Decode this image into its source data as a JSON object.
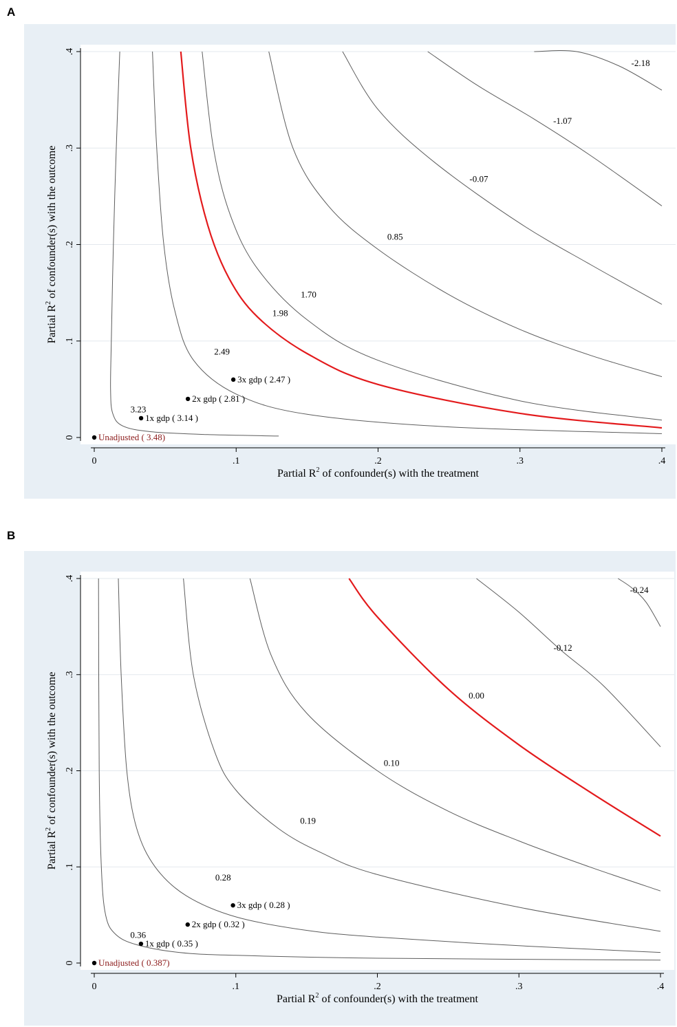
{
  "panels": [
    {
      "label": "A"
    },
    {
      "label": "B"
    }
  ],
  "chart_data": [
    {
      "type": "line",
      "subtype": "contour",
      "panel": "A",
      "xlabel": "Partial R",
      "ylabel": "Partial R",
      "xlabel_rest": " of confounder(s) with the treatment",
      "ylabel_rest": " of confounder(s) with the outcome",
      "superscript": "2",
      "xlim": [
        0,
        0.4
      ],
      "ylim": [
        0,
        0.4
      ],
      "xticks": [
        0,
        0.1,
        0.2,
        0.3,
        0.4
      ],
      "yticks": [
        0,
        0.1,
        0.2,
        0.3,
        0.4
      ],
      "xtick_labels": [
        "0",
        ".1",
        ".2",
        ".3",
        ".4"
      ],
      "ytick_labels": [
        "0",
        ".1",
        ".2",
        ".3",
        ".4"
      ],
      "grid": true,
      "colors": {
        "contour": "#5c5c5c",
        "threshold": "#e31a1c",
        "unadjusted": "#8b1a1a",
        "background": "#e8eff5",
        "grid": "#ffffff"
      },
      "contours": [
        {
          "label": "3.23",
          "points": [
            [
              0.018,
              0.4
            ],
            [
              0.0155,
              0.3
            ],
            [
              0.0135,
              0.2
            ],
            [
              0.012,
              0.1
            ],
            [
              0.0115,
              0.05
            ],
            [
              0.013,
              0.025
            ],
            [
              0.02,
              0.012
            ],
            [
              0.04,
              0.006
            ],
            [
              0.08,
              0.003
            ],
            [
              0.13,
              0.0015
            ]
          ],
          "label_at": [
            0.031,
            0.026
          ]
        },
        {
          "label": "2.49",
          "points": [
            [
              0.041,
              0.4
            ],
            [
              0.044,
              0.3
            ],
            [
              0.049,
              0.2
            ],
            [
              0.057,
              0.13
            ],
            [
              0.07,
              0.08
            ],
            [
              0.1,
              0.045
            ],
            [
              0.15,
              0.024
            ],
            [
              0.25,
              0.011
            ],
            [
              0.4,
              0.004
            ]
          ],
          "label_at": [
            0.09,
            0.086
          ]
        },
        {
          "label": "1.98",
          "threshold": true,
          "points": [
            [
              0.061,
              0.4
            ],
            [
              0.068,
              0.3
            ],
            [
              0.08,
              0.22
            ],
            [
              0.095,
              0.165
            ],
            [
              0.115,
              0.125
            ],
            [
              0.15,
              0.087
            ],
            [
              0.2,
              0.055
            ],
            [
              0.3,
              0.025
            ],
            [
              0.4,
              0.01
            ]
          ],
          "label_at": [
            0.131,
            0.126
          ]
        },
        {
          "label": "1.70",
          "points": [
            [
              0.076,
              0.4
            ],
            [
              0.084,
              0.3
            ],
            [
              0.096,
              0.23
            ],
            [
              0.115,
              0.175
            ],
            [
              0.15,
              0.122
            ],
            [
              0.2,
              0.08
            ],
            [
              0.3,
              0.038
            ],
            [
              0.4,
              0.018
            ]
          ],
          "label_at": [
            0.151,
            0.145
          ]
        },
        {
          "label": "0.85",
          "points": [
            [
              0.123,
              0.4
            ],
            [
              0.14,
              0.3
            ],
            [
              0.165,
              0.24
            ],
            [
              0.2,
              0.195
            ],
            [
              0.25,
              0.148
            ],
            [
              0.3,
              0.112
            ],
            [
              0.35,
              0.085
            ],
            [
              0.4,
              0.063
            ]
          ],
          "label_at": [
            0.212,
            0.205
          ]
        },
        {
          "label": "-0.07",
          "points": [
            [
              0.175,
              0.4
            ],
            [
              0.2,
              0.34
            ],
            [
              0.24,
              0.285
            ],
            [
              0.3,
              0.222
            ],
            [
              0.35,
              0.179
            ],
            [
              0.4,
              0.138
            ]
          ],
          "label_at": [
            0.271,
            0.265
          ]
        },
        {
          "label": "-1.07",
          "points": [
            [
              0.235,
              0.4
            ],
            [
              0.27,
              0.365
            ],
            [
              0.31,
              0.33
            ],
            [
              0.35,
              0.292
            ],
            [
              0.4,
              0.24
            ]
          ],
          "label_at": [
            0.33,
            0.325
          ]
        },
        {
          "label": "-2.18",
          "points": [
            [
              0.31,
              0.4
            ],
            [
              0.34,
              0.4
            ],
            [
              0.37,
              0.385
            ],
            [
              0.4,
              0.36
            ]
          ],
          "label_at": [
            0.385,
            0.385
          ]
        }
      ],
      "points": [
        {
          "label": "Unadjusted ( 3.48)",
          "x": 0,
          "y": 0,
          "unadjusted": true
        },
        {
          "label": "1x gdp ( 3.14 )",
          "x": 0.033,
          "y": 0.02
        },
        {
          "label": "2x gdp ( 2.81 )",
          "x": 0.066,
          "y": 0.04
        },
        {
          "label": "3x gdp ( 2.47 )",
          "x": 0.098,
          "y": 0.06
        }
      ]
    },
    {
      "type": "line",
      "subtype": "contour",
      "panel": "B",
      "xlabel": "Partial R",
      "ylabel": "Partial R",
      "xlabel_rest": " of confounder(s) with the treatment",
      "ylabel_rest": " of confounder(s) with the outcome",
      "superscript": "2",
      "xlim": [
        0,
        0.4
      ],
      "ylim": [
        0,
        0.4
      ],
      "xticks": [
        0,
        0.1,
        0.2,
        0.3,
        0.4
      ],
      "yticks": [
        0,
        0.1,
        0.2,
        0.3,
        0.4
      ],
      "xtick_labels": [
        "0",
        ".1",
        ".2",
        ".3",
        ".4"
      ],
      "ytick_labels": [
        "0",
        ".1",
        ".2",
        ".3",
        ".4"
      ],
      "grid": true,
      "colors": {
        "contour": "#5c5c5c",
        "threshold": "#e31a1c",
        "unadjusted": "#8b1a1a",
        "background": "#e8eff5",
        "grid": "#ffffff"
      },
      "contours": [
        {
          "label": "0.36",
          "points": [
            [
              0.003,
              0.4
            ],
            [
              0.0035,
              0.2
            ],
            [
              0.005,
              0.1
            ],
            [
              0.008,
              0.05
            ],
            [
              0.015,
              0.03
            ],
            [
              0.03,
              0.019
            ],
            [
              0.06,
              0.011
            ],
            [
              0.1,
              0.008
            ],
            [
              0.2,
              0.005
            ],
            [
              0.4,
              0.003
            ]
          ],
          "label_at": [
            0.031,
            0.026
          ]
        },
        {
          "label": "0.28",
          "points": [
            [
              0.017,
              0.4
            ],
            [
              0.019,
              0.3
            ],
            [
              0.023,
              0.2
            ],
            [
              0.03,
              0.14
            ],
            [
              0.043,
              0.1
            ],
            [
              0.065,
              0.07
            ],
            [
              0.1,
              0.048
            ],
            [
              0.15,
              0.034
            ],
            [
              0.2,
              0.027
            ],
            [
              0.3,
              0.018
            ],
            [
              0.4,
              0.011
            ]
          ],
          "label_at": [
            0.091,
            0.086
          ]
        },
        {
          "label": "0.19",
          "points": [
            [
              0.063,
              0.4
            ],
            [
              0.07,
              0.3
            ],
            [
              0.085,
              0.22
            ],
            [
              0.1,
              0.18
            ],
            [
              0.13,
              0.14
            ],
            [
              0.16,
              0.115
            ],
            [
              0.2,
              0.092
            ],
            [
              0.3,
              0.058
            ],
            [
              0.4,
              0.033
            ]
          ],
          "label_at": [
            0.151,
            0.145
          ]
        },
        {
          "label": "0.10",
          "points": [
            [
              0.11,
              0.4
            ],
            [
              0.125,
              0.32
            ],
            [
              0.15,
              0.26
            ],
            [
              0.2,
              0.2
            ],
            [
              0.25,
              0.158
            ],
            [
              0.3,
              0.127
            ],
            [
              0.35,
              0.1
            ],
            [
              0.4,
              0.075
            ]
          ],
          "label_at": [
            0.21,
            0.205
          ]
        },
        {
          "label": "0.00",
          "threshold": true,
          "points": [
            [
              0.18,
              0.4
            ],
            [
              0.2,
              0.36
            ],
            [
              0.25,
              0.285
            ],
            [
              0.3,
              0.227
            ],
            [
              0.35,
              0.178
            ],
            [
              0.4,
              0.132
            ]
          ],
          "label_at": [
            0.27,
            0.275
          ]
        },
        {
          "label": "-0.12",
          "points": [
            [
              0.27,
              0.4
            ],
            [
              0.3,
              0.365
            ],
            [
              0.33,
              0.325
            ],
            [
              0.36,
              0.288
            ],
            [
              0.4,
              0.225
            ]
          ],
          "label_at": [
            0.331,
            0.325
          ]
        },
        {
          "label": "-0.24",
          "points": [
            [
              0.37,
              0.4
            ],
            [
              0.38,
              0.39
            ],
            [
              0.39,
              0.375
            ],
            [
              0.4,
              0.35
            ]
          ],
          "label_at": [
            0.385,
            0.385
          ]
        }
      ],
      "points": [
        {
          "label": "Unadjusted ( 0.387)",
          "x": 0,
          "y": 0,
          "unadjusted": true
        },
        {
          "label": "1x gdp ( 0.35 )",
          "x": 0.033,
          "y": 0.02
        },
        {
          "label": "2x gdp ( 0.32 )",
          "x": 0.066,
          "y": 0.04
        },
        {
          "label": "3x gdp ( 0.28 )",
          "x": 0.098,
          "y": 0.06
        }
      ]
    }
  ]
}
